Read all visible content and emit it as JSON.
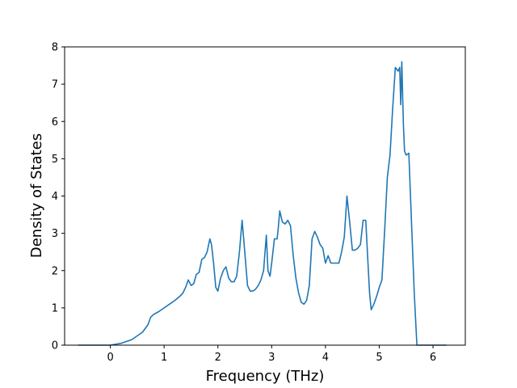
{
  "chart_data": {
    "type": "line",
    "title": "",
    "xlabel": "Frequency (THz)",
    "ylabel": "Density of States",
    "xlim": [
      -0.85,
      6.6
    ],
    "ylim": [
      0,
      8
    ],
    "xticks": [
      0,
      1,
      2,
      3,
      4,
      5,
      6
    ],
    "yticks": [
      0,
      1,
      2,
      3,
      4,
      5,
      6,
      7,
      8
    ],
    "grid": false,
    "legend": "none",
    "series": [
      {
        "color": "#1f77b4",
        "x": [
          -0.6,
          0.0,
          0.2,
          0.4,
          0.5,
          0.6,
          0.7,
          0.75,
          0.8,
          0.9,
          1.0,
          1.1,
          1.2,
          1.3,
          1.35,
          1.4,
          1.45,
          1.5,
          1.55,
          1.6,
          1.65,
          1.7,
          1.75,
          1.8,
          1.85,
          1.88,
          1.92,
          1.96,
          2.0,
          2.05,
          2.1,
          2.15,
          2.2,
          2.25,
          2.3,
          2.35,
          2.4,
          2.45,
          2.5,
          2.55,
          2.6,
          2.65,
          2.7,
          2.75,
          2.8,
          2.85,
          2.9,
          2.93,
          2.97,
          3.0,
          3.05,
          3.1,
          3.12,
          3.15,
          3.2,
          3.25,
          3.3,
          3.35,
          3.4,
          3.45,
          3.5,
          3.55,
          3.6,
          3.65,
          3.7,
          3.75,
          3.8,
          3.85,
          3.9,
          3.95,
          4.0,
          4.05,
          4.1,
          4.15,
          4.2,
          4.25,
          4.3,
          4.35,
          4.4,
          4.45,
          4.5,
          4.55,
          4.6,
          4.65,
          4.7,
          4.75,
          4.78,
          4.82,
          4.85,
          4.9,
          4.95,
          5.0,
          5.05,
          5.1,
          5.15,
          5.2,
          5.25,
          5.3,
          5.35,
          5.38,
          5.4,
          5.42,
          5.45,
          5.47,
          5.5,
          5.55,
          5.6,
          5.65,
          5.7,
          5.75,
          6.25
        ],
        "y": [
          0,
          0.0,
          0.05,
          0.15,
          0.25,
          0.35,
          0.55,
          0.75,
          0.82,
          0.9,
          1.0,
          1.1,
          1.2,
          1.32,
          1.4,
          1.55,
          1.75,
          1.6,
          1.65,
          1.9,
          1.95,
          2.3,
          2.35,
          2.5,
          2.85,
          2.7,
          2.2,
          1.55,
          1.45,
          1.8,
          2.0,
          2.1,
          1.8,
          1.7,
          1.7,
          1.85,
          2.5,
          3.35,
          2.5,
          1.6,
          1.45,
          1.45,
          1.5,
          1.6,
          1.75,
          2.0,
          2.95,
          2.0,
          1.85,
          2.2,
          2.85,
          2.85,
          3.1,
          3.6,
          3.3,
          3.25,
          3.35,
          3.2,
          2.4,
          1.8,
          1.4,
          1.15,
          1.1,
          1.2,
          1.6,
          2.85,
          3.05,
          2.9,
          2.7,
          2.6,
          2.2,
          2.4,
          2.2,
          2.2,
          2.2,
          2.2,
          2.5,
          2.9,
          4.0,
          3.3,
          2.55,
          2.55,
          2.6,
          2.7,
          3.35,
          3.35,
          2.5,
          1.4,
          0.95,
          1.1,
          1.3,
          1.55,
          1.75,
          3.05,
          4.5,
          5.1,
          6.35,
          7.45,
          7.35,
          7.45,
          6.45,
          7.6,
          5.9,
          5.2,
          5.1,
          5.15,
          3.3,
          1.4,
          0.0,
          0.0,
          0.0
        ]
      }
    ]
  }
}
